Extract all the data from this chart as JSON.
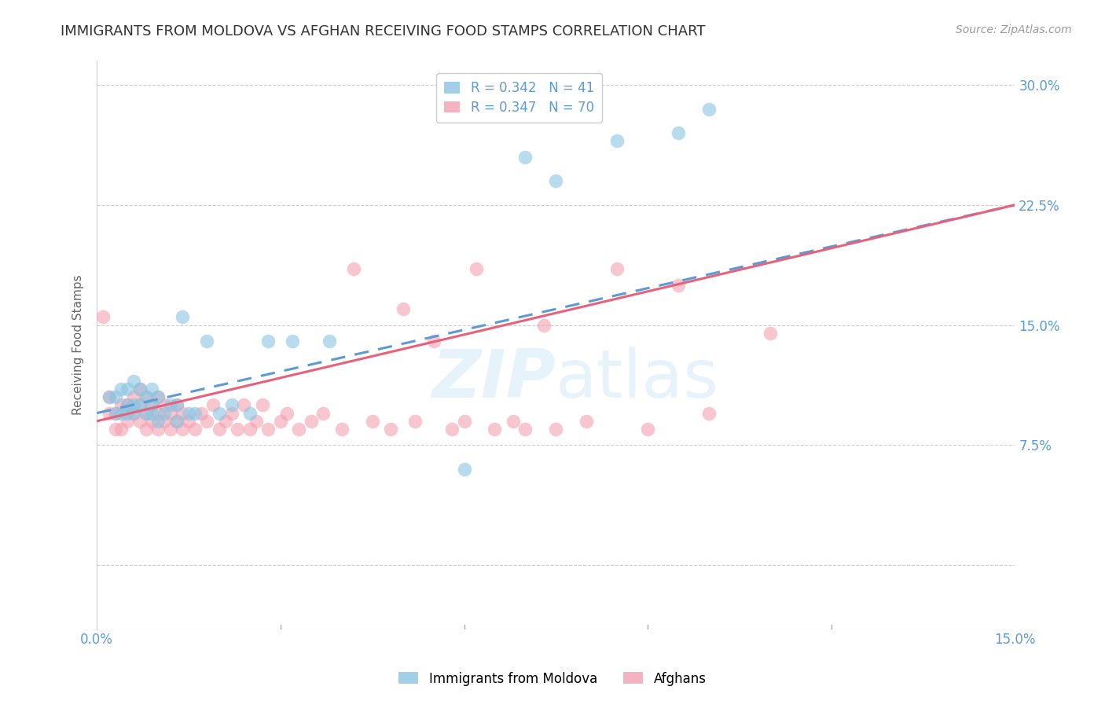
{
  "title": "IMMIGRANTS FROM MOLDOVA VS AFGHAN RECEIVING FOOD STAMPS CORRELATION CHART",
  "source": "Source: ZipAtlas.com",
  "ylabel": "Receiving Food Stamps",
  "xlim": [
    0.0,
    0.15
  ],
  "ylim": [
    -0.04,
    0.315
  ],
  "moldova_R": 0.342,
  "moldova_N": 41,
  "afghan_R": 0.347,
  "afghan_N": 70,
  "moldova_color": "#89c4e1",
  "afghan_color": "#f4a0b0",
  "moldova_line_color": "#5b9bd5",
  "afghan_line_color": "#e8607a",
  "title_fontsize": 13,
  "source_fontsize": 10,
  "axis_label_color": "#5b9bd5",
  "legend_fontsize": 12,
  "moldova_x": [
    0.002,
    0.003,
    0.003,
    0.004,
    0.004,
    0.005,
    0.005,
    0.005,
    0.006,
    0.006,
    0.006,
    0.007,
    0.007,
    0.008,
    0.008,
    0.009,
    0.009,
    0.009,
    0.01,
    0.01,
    0.011,
    0.012,
    0.013,
    0.013,
    0.014,
    0.015,
    0.016,
    0.018,
    0.02,
    0.022,
    0.025,
    0.028,
    0.032,
    0.038,
    0.07,
    0.075,
    0.08,
    0.085,
    0.095,
    0.1,
    0.06
  ],
  "moldova_y": [
    0.105,
    0.095,
    0.105,
    0.095,
    0.11,
    0.095,
    0.1,
    0.11,
    0.095,
    0.1,
    0.115,
    0.1,
    0.11,
    0.095,
    0.105,
    0.1,
    0.095,
    0.11,
    0.09,
    0.105,
    0.095,
    0.1,
    0.09,
    0.1,
    0.155,
    0.095,
    0.095,
    0.14,
    0.095,
    0.1,
    0.095,
    0.14,
    0.14,
    0.14,
    0.255,
    0.24,
    0.285,
    0.265,
    0.27,
    0.285,
    0.06
  ],
  "afghan_x": [
    0.001,
    0.002,
    0.002,
    0.003,
    0.003,
    0.004,
    0.004,
    0.005,
    0.005,
    0.006,
    0.006,
    0.007,
    0.007,
    0.007,
    0.008,
    0.008,
    0.008,
    0.009,
    0.009,
    0.01,
    0.01,
    0.01,
    0.011,
    0.011,
    0.012,
    0.012,
    0.013,
    0.013,
    0.014,
    0.014,
    0.015,
    0.016,
    0.017,
    0.018,
    0.019,
    0.02,
    0.021,
    0.022,
    0.023,
    0.024,
    0.025,
    0.026,
    0.027,
    0.028,
    0.03,
    0.031,
    0.033,
    0.035,
    0.037,
    0.04,
    0.042,
    0.045,
    0.048,
    0.05,
    0.052,
    0.055,
    0.058,
    0.06,
    0.062,
    0.065,
    0.068,
    0.07,
    0.073,
    0.075,
    0.08,
    0.085,
    0.09,
    0.095,
    0.1,
    0.11
  ],
  "afghan_y": [
    0.155,
    0.095,
    0.105,
    0.085,
    0.095,
    0.085,
    0.1,
    0.09,
    0.1,
    0.095,
    0.105,
    0.09,
    0.1,
    0.11,
    0.095,
    0.085,
    0.105,
    0.09,
    0.1,
    0.085,
    0.095,
    0.105,
    0.09,
    0.1,
    0.085,
    0.095,
    0.09,
    0.1,
    0.085,
    0.095,
    0.09,
    0.085,
    0.095,
    0.09,
    0.1,
    0.085,
    0.09,
    0.095,
    0.085,
    0.1,
    0.085,
    0.09,
    0.1,
    0.085,
    0.09,
    0.095,
    0.085,
    0.09,
    0.095,
    0.085,
    0.185,
    0.09,
    0.085,
    0.16,
    0.09,
    0.14,
    0.085,
    0.09,
    0.185,
    0.085,
    0.09,
    0.085,
    0.15,
    0.085,
    0.09,
    0.185,
    0.085,
    0.175,
    0.095,
    0.145
  ],
  "y_ticks": [
    0.0,
    0.075,
    0.15,
    0.225,
    0.3
  ],
  "y_tick_labels": [
    "",
    "7.5%",
    "15.0%",
    "22.5%",
    "30.0%"
  ],
  "x_ticks": [
    0.0,
    0.03,
    0.06,
    0.09,
    0.12,
    0.15
  ],
  "x_tick_labels": [
    "0.0%",
    "",
    "",
    "",
    "",
    "15.0%"
  ]
}
